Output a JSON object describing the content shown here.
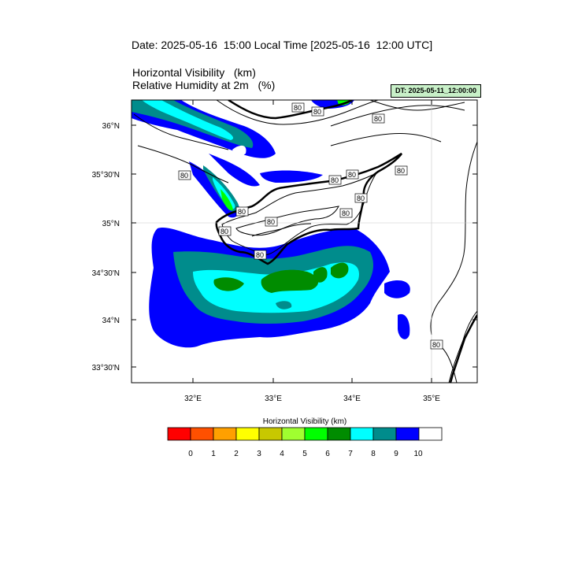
{
  "header": {
    "date_line": "Date: 2025-05-16  15:00 Local Time [2025-05-16  12:00 UTC]",
    "var1": "Horizontal Visibility   (km)",
    "var2": "Relative Humidity at 2m   (%)",
    "dt_label": "DT: 2025-05-11_12:00:00"
  },
  "map": {
    "lat_labels": [
      "36°N",
      "35°30'N",
      "35°N",
      "34°30'N",
      "34°N",
      "33°30'N"
    ],
    "lon_labels": [
      "32°E",
      "33°E",
      "34°E",
      "35°E"
    ],
    "contour_label": "80"
  },
  "colorbar": {
    "title": "Horizontal Visibility  (km)",
    "ticks": [
      "0",
      "1",
      "2",
      "3",
      "4",
      "5",
      "6",
      "7",
      "8",
      "9",
      "10"
    ],
    "colors": [
      "#ff0000",
      "#ff5000",
      "#ffa000",
      "#ffff00",
      "#c8c800",
      "#a0ff30",
      "#00ff00",
      "#008c00",
      "#00ffff",
      "#008c8c",
      "#0000ff",
      "#ffffff"
    ]
  }
}
